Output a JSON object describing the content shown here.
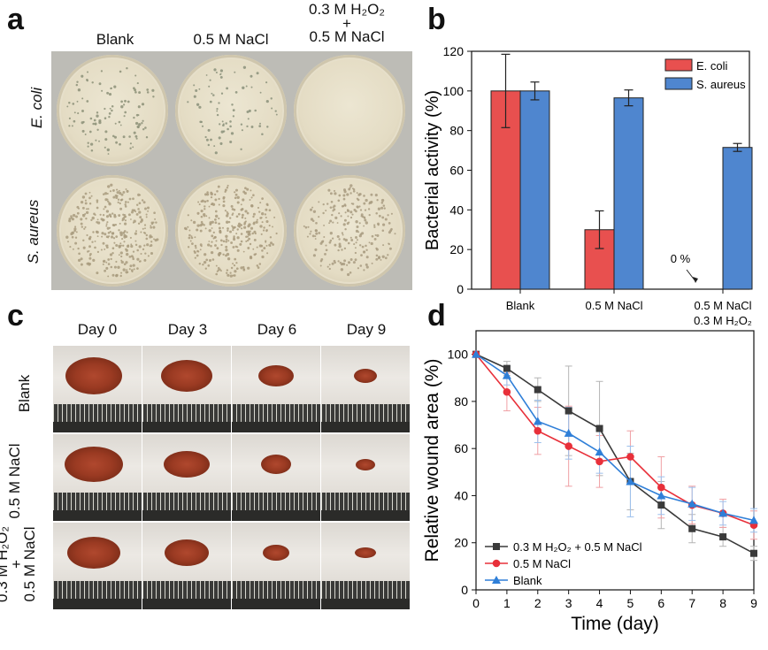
{
  "panels": {
    "a": {
      "label": "a",
      "columns": [
        "Blank",
        "0.5 M NaCl"
      ],
      "column3": {
        "line1": "0.3 M H₂O₂",
        "line2": "+",
        "line3": "0.5 M NaCl"
      },
      "rows": [
        "E. coli",
        "S. aureus"
      ]
    },
    "b": {
      "label": "b"
    },
    "c": {
      "label": "c",
      "columns": [
        "Day 0",
        "Day 3",
        "Day 6",
        "Day 9"
      ],
      "rows": [
        "Blank",
        "0.5 M NaCl"
      ],
      "row3": {
        "line1": "0.3 M H₂O₂",
        "line2": "+",
        "line3": "0.5 M NaCl"
      }
    },
    "d": {
      "label": "d"
    }
  },
  "chart_data": [
    {
      "id": "b",
      "type": "bar",
      "ylabel": "Bacterial activity (%)",
      "ylim": [
        0,
        120
      ],
      "yticks": [
        0,
        20,
        40,
        60,
        80,
        100,
        120
      ],
      "categories": [
        "Blank",
        "0.5 M NaCl",
        "0.5 M NaCl / 0.3 M H₂O₂"
      ],
      "category_labels": [
        [
          "Blank"
        ],
        [
          "0.5 M NaCl"
        ],
        [
          "0.5 M NaCl",
          "0.3 M H₂O₂"
        ]
      ],
      "series": [
        {
          "name": "E. coli",
          "color": "#e8504f",
          "values": [
            100,
            30,
            0
          ],
          "errors": [
            18.5,
            9.5,
            0
          ]
        },
        {
          "name": "S. aureus",
          "color": "#4f86cf",
          "values": [
            100,
            96.5,
            71.5
          ],
          "errors": [
            4.5,
            4.0,
            2.0
          ]
        }
      ],
      "annotations": [
        {
          "text": "0 %",
          "category": 2
        }
      ],
      "legend": "top-right"
    },
    {
      "id": "d",
      "type": "line",
      "xlabel": "Time (day)",
      "ylabel": "Relative wound area (%)",
      "xlim": [
        0,
        9
      ],
      "ylim": [
        0,
        110
      ],
      "xticks": [
        0,
        1,
        2,
        3,
        4,
        5,
        6,
        7,
        8,
        9
      ],
      "yticks": [
        0,
        20,
        40,
        60,
        80,
        100
      ],
      "x": [
        0,
        1,
        2,
        3,
        4,
        5,
        6,
        7,
        8,
        9
      ],
      "series": [
        {
          "name": "0.3 M H₂O₂ + 0.5 M NaCl",
          "color": "#3a3a3a",
          "marker": "square",
          "values": [
            100,
            94,
            85,
            76,
            68.5,
            46,
            36,
            26,
            22.5,
            15.5
          ],
          "errors": [
            0,
            3,
            5,
            19,
            20,
            12,
            10,
            6,
            4,
            3
          ]
        },
        {
          "name": "0.5 M NaCl",
          "color": "#e8303a",
          "marker": "circle",
          "values": [
            100,
            84,
            67.5,
            61,
            54.5,
            56.5,
            43.5,
            36,
            32.5,
            27.5
          ],
          "errors": [
            0,
            8,
            10,
            17,
            11,
            11,
            13,
            8,
            6,
            6
          ]
        },
        {
          "name": "Blank",
          "color": "#2f7fd8",
          "marker": "triangle",
          "values": [
            100,
            91,
            71.5,
            66.5,
            58.5,
            46,
            40,
            36.5,
            32.5,
            29.5
          ],
          "errors": [
            0,
            4,
            9,
            11,
            9,
            15,
            8,
            7,
            5,
            5
          ]
        }
      ],
      "legend": "bottom-left"
    }
  ]
}
